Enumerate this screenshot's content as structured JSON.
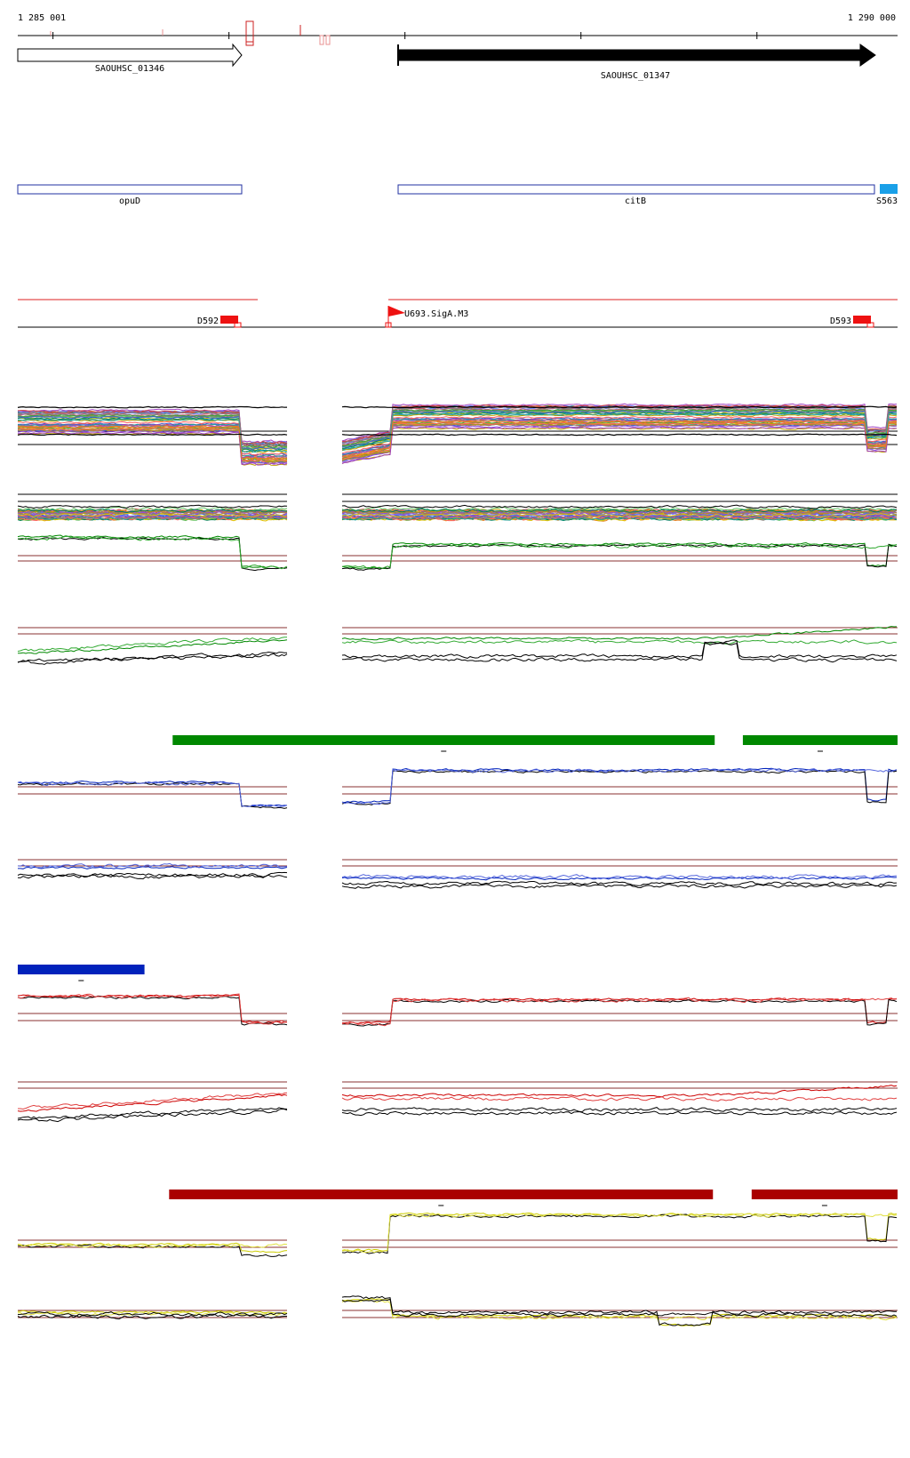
{
  "coord_axis": {
    "start_label": "1 285 001",
    "end_label": "1 290 000",
    "start": 1285001,
    "end": 1290000,
    "ticks": [
      1285201,
      1286201,
      1287201,
      1288201,
      1289201
    ]
  },
  "genes": [
    {
      "label": "SAOUHSC_01346",
      "strand": "+",
      "style": "outline",
      "start": 1285001,
      "end": 1286271
    },
    {
      "label": "SAOUHSC_01347",
      "strand": "+",
      "style": "filled",
      "start": 1287171,
      "end": 1289871
    }
  ],
  "gene_names": [
    {
      "label": "opuD",
      "start": 1285001,
      "end": 1286271,
      "color": "#2030a0"
    },
    {
      "label": "citB",
      "start": 1287171,
      "end": 1289871,
      "color": "#2030a0"
    },
    {
      "label": "S563",
      "start": 1289921,
      "end": 1290000,
      "color": "#1aa0e8"
    }
  ],
  "regulatory": [
    {
      "label": "D592",
      "type": "terminator",
      "position": 1286271
    },
    {
      "label": "U693.SigA.M3",
      "type": "promoter",
      "position": 1287131
    },
    {
      "label": "D593",
      "type": "terminator",
      "position": 1289871
    }
  ],
  "conditions": {
    "green": {
      "color": "#008800",
      "bars": [
        {
          "start": 1285881,
          "end": 1288961
        },
        {
          "start": 1289121,
          "end": 1290000
        }
      ]
    },
    "blue": {
      "color": "#0022bb",
      "bars": [
        {
          "start": 1285001,
          "end": 1285721
        }
      ]
    },
    "red": {
      "color": "#aa0000",
      "bars": [
        {
          "start": 1285861,
          "end": 1288951
        },
        {
          "start": 1289171,
          "end": 1290000
        }
      ]
    },
    "yellow": {
      "color": "#cccc00"
    }
  },
  "colors": {
    "threshold": "#8a3030",
    "axis": "#000000"
  }
}
